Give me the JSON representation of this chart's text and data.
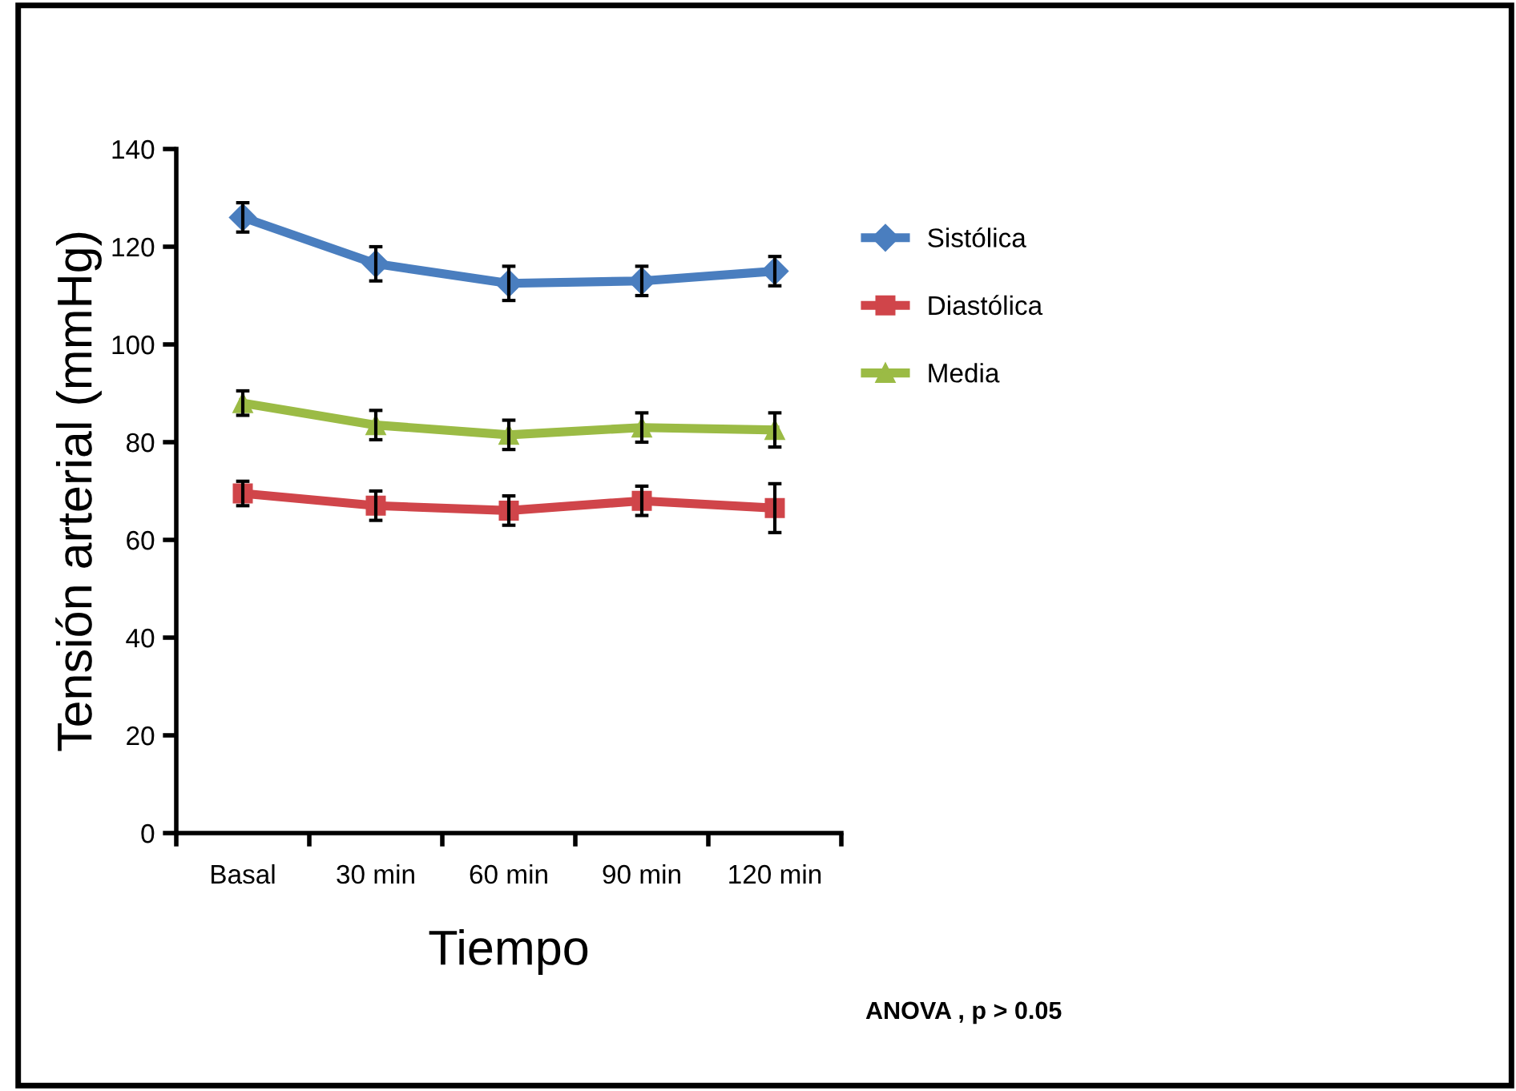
{
  "chart_data": {
    "type": "line",
    "xlabel": "Tiempo",
    "ylabel": "Tensión arterial (mmHg)",
    "categories": [
      "Basal",
      "30 min",
      "60 min",
      "90 min",
      "120 min"
    ],
    "series": [
      {
        "name": "Sistólica",
        "color": "#4a7ebf",
        "marker": "diamond",
        "values": [
          126,
          116.5,
          112.5,
          113,
          115
        ],
        "errors": [
          3,
          3.5,
          3.5,
          3,
          3
        ]
      },
      {
        "name": "Diastólica",
        "color": "#d0454a",
        "marker": "square",
        "values": [
          69.5,
          67,
          66,
          68,
          66.5
        ],
        "errors": [
          2.5,
          3,
          3,
          3,
          5
        ]
      },
      {
        "name": "Media",
        "color": "#9bbb45",
        "marker": "triangle",
        "values": [
          88,
          83.5,
          81.5,
          83,
          82.5
        ],
        "errors": [
          2.5,
          3,
          3,
          3,
          3.5
        ]
      }
    ],
    "ylim": [
      0,
      140
    ],
    "yticks": [
      0,
      20,
      40,
      60,
      80,
      100,
      120,
      140
    ],
    "grid": false,
    "legend": "right",
    "annotations": [
      "ANOVA , p > 0.05"
    ]
  }
}
